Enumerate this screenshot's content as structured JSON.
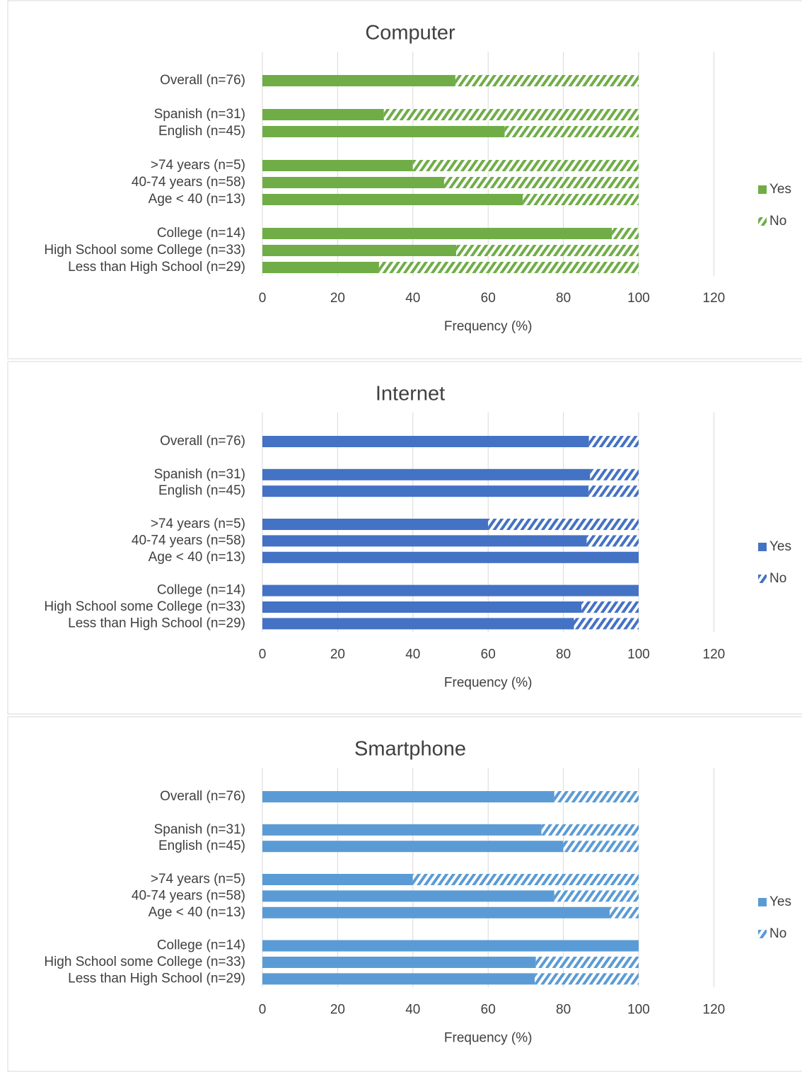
{
  "chart_data": [
    {
      "type": "bar",
      "orientation": "horizontal",
      "stacked": true,
      "title": "Computer",
      "x_label": "Frequency (%)",
      "categories": [
        "Overall (n=76)",
        null,
        "Spanish (n=31)",
        "English (n=45)",
        null,
        ">74 years (n=5)",
        "40-74 years (n=58)",
        "Age < 40 (n=13)",
        null,
        "College (n=14)",
        "High School some College (n=33)",
        "Less than High School (n=29)"
      ],
      "series": [
        {
          "name": "Yes",
          "color": "#70ad47",
          "values": [
            51.3,
            null,
            32.3,
            64.4,
            null,
            40,
            48.3,
            69.2,
            null,
            92.9,
            51.5,
            31.0
          ]
        },
        {
          "name": "No",
          "color": "#70ad47",
          "pattern": "hatch",
          "values": [
            48.7,
            null,
            67.7,
            35.6,
            null,
            60,
            51.7,
            30.8,
            null,
            7.1,
            48.5,
            69.0
          ]
        }
      ],
      "xlim": [
        0,
        120
      ],
      "xticks": [
        0,
        20,
        40,
        60,
        80,
        100,
        120
      ],
      "grid": true,
      "legend": "right"
    },
    {
      "type": "bar",
      "orientation": "horizontal",
      "stacked": true,
      "title": "Internet",
      "x_label": "Frequency (%)",
      "categories": [
        "Overall (n=76)",
        null,
        "Spanish (n=31)",
        "English (n=45)",
        null,
        ">74 years (n=5)",
        "40-74 years (n=58)",
        "Age < 40 (n=13)",
        null,
        "College (n=14)",
        "High School some College (n=33)",
        "Less than High School (n=29)"
      ],
      "series": [
        {
          "name": "Yes",
          "color": "#4472c4",
          "values": [
            86.8,
            null,
            87.1,
            86.7,
            null,
            60,
            86.2,
            100,
            null,
            100,
            84.8,
            82.8
          ]
        },
        {
          "name": "No",
          "color": "#4472c4",
          "pattern": "hatch",
          "values": [
            13.2,
            null,
            12.9,
            13.3,
            null,
            40,
            13.8,
            0,
            null,
            0,
            15.2,
            17.2
          ]
        }
      ],
      "xlim": [
        0,
        120
      ],
      "xticks": [
        0,
        20,
        40,
        60,
        80,
        100,
        120
      ],
      "grid": true,
      "legend": "right"
    },
    {
      "type": "bar",
      "orientation": "horizontal",
      "stacked": true,
      "title": "Smartphone",
      "x_label": "Frequency (%)",
      "categories": [
        "Overall (n=76)",
        null,
        "Spanish (n=31)",
        "English (n=45)",
        null,
        ">74 years (n=5)",
        "40-74 years (n=58)",
        "Age < 40 (n=13)",
        null,
        "College (n=14)",
        "High School some College (n=33)",
        "Less than High School (n=29)"
      ],
      "series": [
        {
          "name": "Yes",
          "color": "#5b9bd5",
          "values": [
            77.6,
            null,
            74.2,
            80.0,
            null,
            40,
            77.6,
            92.3,
            null,
            100,
            72.7,
            72.4
          ]
        },
        {
          "name": "No",
          "color": "#5b9bd5",
          "pattern": "hatch",
          "values": [
            22.4,
            null,
            25.8,
            20.0,
            null,
            60,
            22.4,
            7.7,
            null,
            0,
            27.3,
            27.6
          ]
        }
      ],
      "xlim": [
        0,
        120
      ],
      "xticks": [
        0,
        20,
        40,
        60,
        80,
        100,
        120
      ],
      "grid": true,
      "legend": "right"
    }
  ]
}
